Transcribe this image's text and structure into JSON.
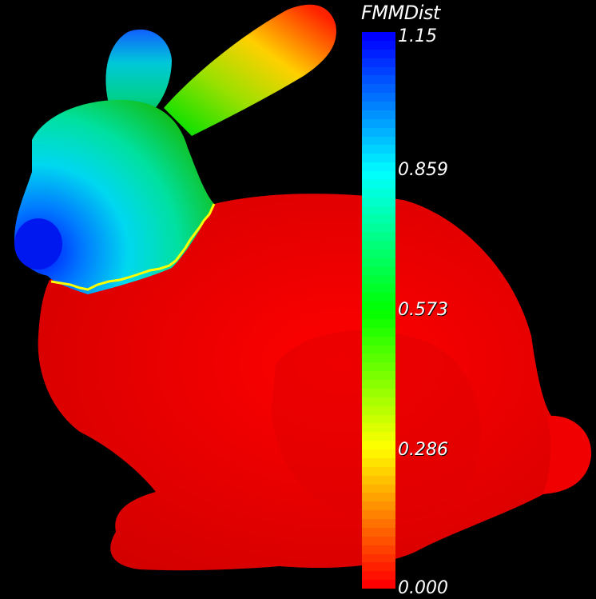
{
  "scalar_bar": {
    "title": "FMMDist",
    "labels": [
      "1.15",
      "0.859",
      "0.573",
      "0.286",
      "0.000"
    ],
    "colormap": [
      "#0000ff",
      "#00ffff",
      "#00ff00",
      "#ffff00",
      "#ff0000"
    ],
    "band_count": 64
  },
  "mesh": {
    "colors": {
      "body": "#ff0000",
      "boundary_curve": "#ffff00",
      "head_near": "#00ffff",
      "nose_far": "#0000ff",
      "ear_tip": "#ff2a00"
    }
  }
}
